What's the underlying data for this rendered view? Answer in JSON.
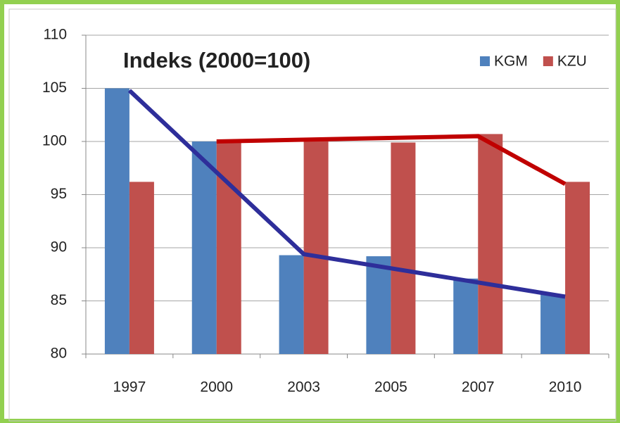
{
  "chart_data": {
    "type": "bar",
    "title": "Indeks (2000=100)",
    "categories": [
      "1997",
      "2000",
      "2003",
      "2005",
      "2007",
      "2010"
    ],
    "series": [
      {
        "name": "KGM",
        "color": "#4f81bd",
        "values": [
          105,
          100,
          89.3,
          89.2,
          87.1,
          85.6
        ]
      },
      {
        "name": "KZU",
        "color": "#c0504d",
        "values": [
          96.2,
          100,
          100.2,
          99.9,
          100.7,
          96.2
        ]
      }
    ],
    "lines": [
      {
        "color": "#2e2e9a",
        "points": [
          {
            "x": "1997",
            "y": 104.8
          },
          {
            "x": "2003",
            "y": 89.4
          },
          {
            "x": "2010",
            "y": 85.4
          }
        ]
      },
      {
        "color": "#c00000",
        "points": [
          {
            "x": "2000",
            "y": 100
          },
          {
            "x": "2007",
            "y": 100.5
          },
          {
            "x": "2010",
            "y": 96
          }
        ]
      }
    ],
    "ylim": [
      80,
      110
    ],
    "yticks": [
      80,
      85,
      90,
      95,
      100,
      105,
      110
    ],
    "grid": true,
    "legend": "top-right"
  }
}
